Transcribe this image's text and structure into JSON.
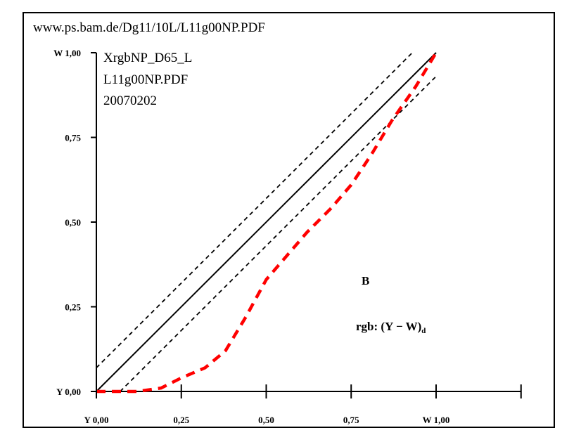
{
  "header": {
    "url": "www.ps.bam.de/Dg11/10L/L11g00NP.PDF"
  },
  "legend_block": {
    "lines": [
      "XrgbNP_D65_L",
      "L11g00NP.PDF",
      "20070202"
    ]
  },
  "annotations": {
    "letter": "B",
    "formula_main": "rgb: (Y − W)",
    "formula_sub": "d"
  },
  "colors": {
    "series_red": "#ff0000",
    "axis": "#000000"
  },
  "chart_data": {
    "type": "line",
    "xlim": [
      0,
      1.25
    ],
    "ylim": [
      0,
      1.0
    ],
    "x_ticks": [
      {
        "value": 0.0,
        "label": "Y 0,00"
      },
      {
        "value": 0.25,
        "label": "0,25"
      },
      {
        "value": 0.5,
        "label": "0,50"
      },
      {
        "value": 0.75,
        "label": "0,75"
      },
      {
        "value": 1.0,
        "label": "W 1,00"
      }
    ],
    "x_minor_ticks": [
      1.25
    ],
    "y_ticks": [
      {
        "value": 0.0,
        "label": "Y 0,00"
      },
      {
        "value": 0.25,
        "label": "0,25"
      },
      {
        "value": 0.5,
        "label": "0,50"
      },
      {
        "value": 0.75,
        "label": "0,75"
      },
      {
        "value": 1.0,
        "label": "W 1,00"
      }
    ],
    "series": [
      {
        "style": "solid",
        "color": "#000000",
        "x": [
          0,
          1.0
        ],
        "y": [
          0,
          1.0
        ]
      },
      {
        "style": "dashed",
        "color": "#000000",
        "x": [
          0,
          0.93
        ],
        "y": [
          0.07,
          1.0
        ]
      },
      {
        "style": "dashed",
        "color": "#000000",
        "x": [
          0.07,
          1.0
        ],
        "y": [
          0,
          0.93
        ]
      },
      {
        "style": "dashed-thick",
        "color": "#ff0000",
        "x": [
          0,
          0.06,
          0.12,
          0.19,
          0.25,
          0.32,
          0.38,
          0.44,
          0.5,
          0.56,
          0.62,
          0.69,
          0.75,
          0.81,
          0.87,
          0.94,
          1.0
        ],
        "y": [
          0,
          0,
          0,
          0.01,
          0.04,
          0.07,
          0.12,
          0.22,
          0.33,
          0.4,
          0.47,
          0.54,
          0.61,
          0.7,
          0.8,
          0.9,
          1.0
        ]
      }
    ]
  }
}
